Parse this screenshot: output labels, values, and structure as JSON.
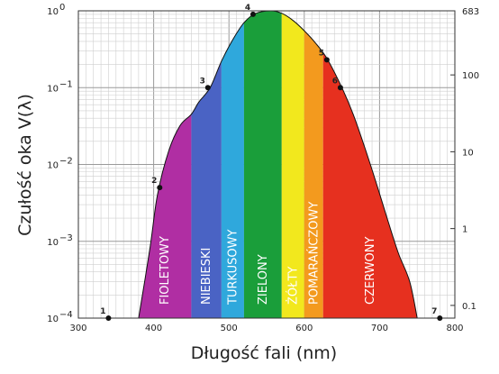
{
  "chart_data": {
    "type": "area",
    "xlabel": "Długość fali (nm)",
    "ylabel": "Czułość oka V(λ)",
    "xlim": [
      300,
      800
    ],
    "ylim": [
      0.0001,
      1
    ],
    "yscale": "log",
    "y2lim": [
      0.0683,
      683
    ],
    "y2scale": "log",
    "grid": true,
    "x_ticks": [
      "300",
      "400",
      "500",
      "600",
      "700",
      "800"
    ],
    "y_ticks": [
      {
        "value": 0.0001,
        "label": "10",
        "exp": "−4"
      },
      {
        "value": 0.001,
        "label": "10",
        "exp": "−3"
      },
      {
        "value": 0.01,
        "label": "10",
        "exp": "−2"
      },
      {
        "value": 0.1,
        "label": "10",
        "exp": "−1"
      },
      {
        "value": 1,
        "label": "10",
        "exp": "0"
      }
    ],
    "y2_ticks": [
      {
        "value": 0.1,
        "label": "0.1"
      },
      {
        "value": 1,
        "label": "1"
      },
      {
        "value": 10,
        "label": "10"
      },
      {
        "value": 100,
        "label": "100"
      },
      {
        "value": 683,
        "label": "683"
      }
    ],
    "curve": [
      [
        380,
        0.0001
      ],
      [
        395,
        0.0008
      ],
      [
        405,
        0.004
      ],
      [
        420,
        0.015
      ],
      [
        435,
        0.032
      ],
      [
        450,
        0.045
      ],
      [
        460,
        0.065
      ],
      [
        475,
        0.1
      ],
      [
        490,
        0.22
      ],
      [
        505,
        0.42
      ],
      [
        520,
        0.7
      ],
      [
        535,
        0.92
      ],
      [
        555,
        1.0
      ],
      [
        570,
        0.93
      ],
      [
        585,
        0.75
      ],
      [
        600,
        0.55
      ],
      [
        615,
        0.38
      ],
      [
        630,
        0.24
      ],
      [
        650,
        0.1
      ],
      [
        665,
        0.045
      ],
      [
        680,
        0.017
      ],
      [
        695,
        0.006
      ],
      [
        710,
        0.002
      ],
      [
        725,
        0.0007
      ],
      [
        740,
        0.0003
      ],
      [
        750,
        0.0001
      ]
    ],
    "bands": [
      {
        "label": "FIOLETOWY",
        "from": 380,
        "to": 450,
        "color": "#b02ea3"
      },
      {
        "label": "NIEBIESKI",
        "from": 450,
        "to": 490,
        "color": "#4a63c4"
      },
      {
        "label": "TURKUSOWY",
        "from": 490,
        "to": 520,
        "color": "#2fa8dc"
      },
      {
        "label": "ZIELONY",
        "from": 520,
        "to": 570,
        "color": "#1a9e3a"
      },
      {
        "label": "ŻÓŁTY",
        "from": 570,
        "to": 600,
        "color": "#f2e81d"
      },
      {
        "label": "POMARAŃCZOWY",
        "from": 600,
        "to": 625,
        "color": "#f39a1e"
      },
      {
        "label": "CZERWONY",
        "from": 625,
        "to": 750,
        "color": "#e6301f"
      }
    ],
    "points": [
      {
        "label": "1",
        "x": 340,
        "y": 0.0001
      },
      {
        "label": "2",
        "x": 408,
        "y": 0.005
      },
      {
        "label": "3",
        "x": 472,
        "y": 0.1
      },
      {
        "label": "4",
        "x": 532,
        "y": 0.9
      },
      {
        "label": "5",
        "x": 630,
        "y": 0.23
      },
      {
        "label": "6",
        "x": 648,
        "y": 0.1
      },
      {
        "label": "7",
        "x": 780,
        "y": 0.0001
      }
    ]
  }
}
